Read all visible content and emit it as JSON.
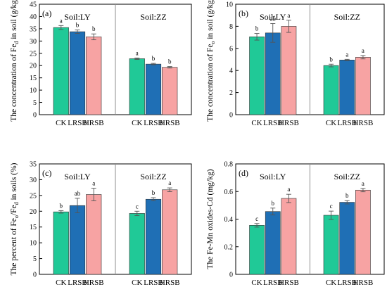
{
  "colors": {
    "CK": "#20c997",
    "LRSB": "#1f6fb5",
    "HRSB": "#f7a3a3"
  },
  "chart_data": [
    {
      "type": "bar",
      "panel_label": "(a)",
      "ylabel_pre": "The  concentration of Fe",
      "ylabel_sub": "d",
      "ylabel_post": " in soil (g/kg)",
      "ylim": [
        0,
        45
      ],
      "yticks": [
        0,
        5,
        10,
        15,
        20,
        25,
        30,
        35,
        40,
        45
      ],
      "groups": [
        {
          "soil": "Soil:LY",
          "categories": [
            "CK",
            "LRSB",
            "HRSB"
          ],
          "values": [
            35.5,
            33.8,
            31.7
          ],
          "errors": [
            0.8,
            0.7,
            1.2
          ],
          "letters": [
            "a",
            "b",
            "b"
          ]
        },
        {
          "soil": "Soil:ZZ",
          "categories": [
            "CK",
            "LRSB",
            "HRSB"
          ],
          "values": [
            22.8,
            20.6,
            19.3
          ],
          "errors": [
            0.3,
            0.3,
            0.3
          ],
          "letters": [
            "a",
            "b",
            "b"
          ]
        }
      ]
    },
    {
      "type": "bar",
      "panel_label": "(b)",
      "ylabel_pre": "The  concentration of Fe",
      "ylabel_sub": "o",
      "ylabel_post": " in soil (g/kg)",
      "ylim": [
        0,
        10
      ],
      "yticks": [
        0,
        2,
        4,
        6,
        8,
        10
      ],
      "groups": [
        {
          "soil": "Soil:LY",
          "categories": [
            "CK",
            "LRSB",
            "HRSB"
          ],
          "values": [
            7.05,
            7.4,
            8.0
          ],
          "errors": [
            0.3,
            0.85,
            0.55
          ],
          "letters": [
            "b",
            "ab",
            "a"
          ]
        },
        {
          "soil": "Soil:ZZ",
          "categories": [
            "CK",
            "LRSB",
            "HRSB"
          ],
          "values": [
            4.45,
            4.95,
            5.2
          ],
          "errors": [
            0.12,
            0.06,
            0.15
          ],
          "letters": [
            "b",
            "a",
            "a"
          ]
        }
      ]
    },
    {
      "type": "bar",
      "panel_label": "(c)",
      "ylabel_pre": "The percent of Fe",
      "ylabel_sub": "o",
      "ylabel_mid": "/Fe",
      "ylabel_sub2": "d",
      "ylabel_post": " in soils (%)",
      "ylim": [
        0,
        35
      ],
      "yticks": [
        0,
        5,
        10,
        15,
        20,
        25,
        30,
        35
      ],
      "groups": [
        {
          "soil": "Soil:LY",
          "categories": [
            "CK",
            "LRSB",
            "HRSB"
          ],
          "values": [
            19.8,
            21.8,
            25.3
          ],
          "errors": [
            0.4,
            2.3,
            2.0
          ],
          "letters": [
            "b",
            "ab",
            "a"
          ]
        },
        {
          "soil": "Soil:ZZ",
          "categories": [
            "CK",
            "LRSB",
            "HRSB"
          ],
          "values": [
            19.3,
            23.8,
            26.8
          ],
          "errors": [
            0.7,
            0.5,
            0.6
          ],
          "letters": [
            "c",
            "b",
            "a"
          ]
        }
      ]
    },
    {
      "type": "bar",
      "panel_label": "(d)",
      "ylabel_pre": "The Fe-Mn oxides-Cd (mg/kg)",
      "ylim": [
        0,
        0.8
      ],
      "yticks": [
        0,
        0.2,
        0.4,
        0.6,
        0.8
      ],
      "ytick_labels": [
        "0",
        "0.2",
        "0.4",
        "0.6",
        "0.8"
      ],
      "groups": [
        {
          "soil": "Soil:LY",
          "categories": [
            "CK",
            "LRSB",
            "HRSB"
          ],
          "values": [
            0.355,
            0.455,
            0.55
          ],
          "errors": [
            0.013,
            0.025,
            0.03
          ],
          "letters": [
            "c",
            "b",
            "a"
          ]
        },
        {
          "soil": "Soil:ZZ",
          "categories": [
            "CK",
            "LRSB",
            "HRSB"
          ],
          "values": [
            0.428,
            0.522,
            0.61
          ],
          "errors": [
            0.03,
            0.012,
            0.012
          ],
          "letters": [
            "c",
            "b",
            "a"
          ]
        }
      ]
    }
  ]
}
